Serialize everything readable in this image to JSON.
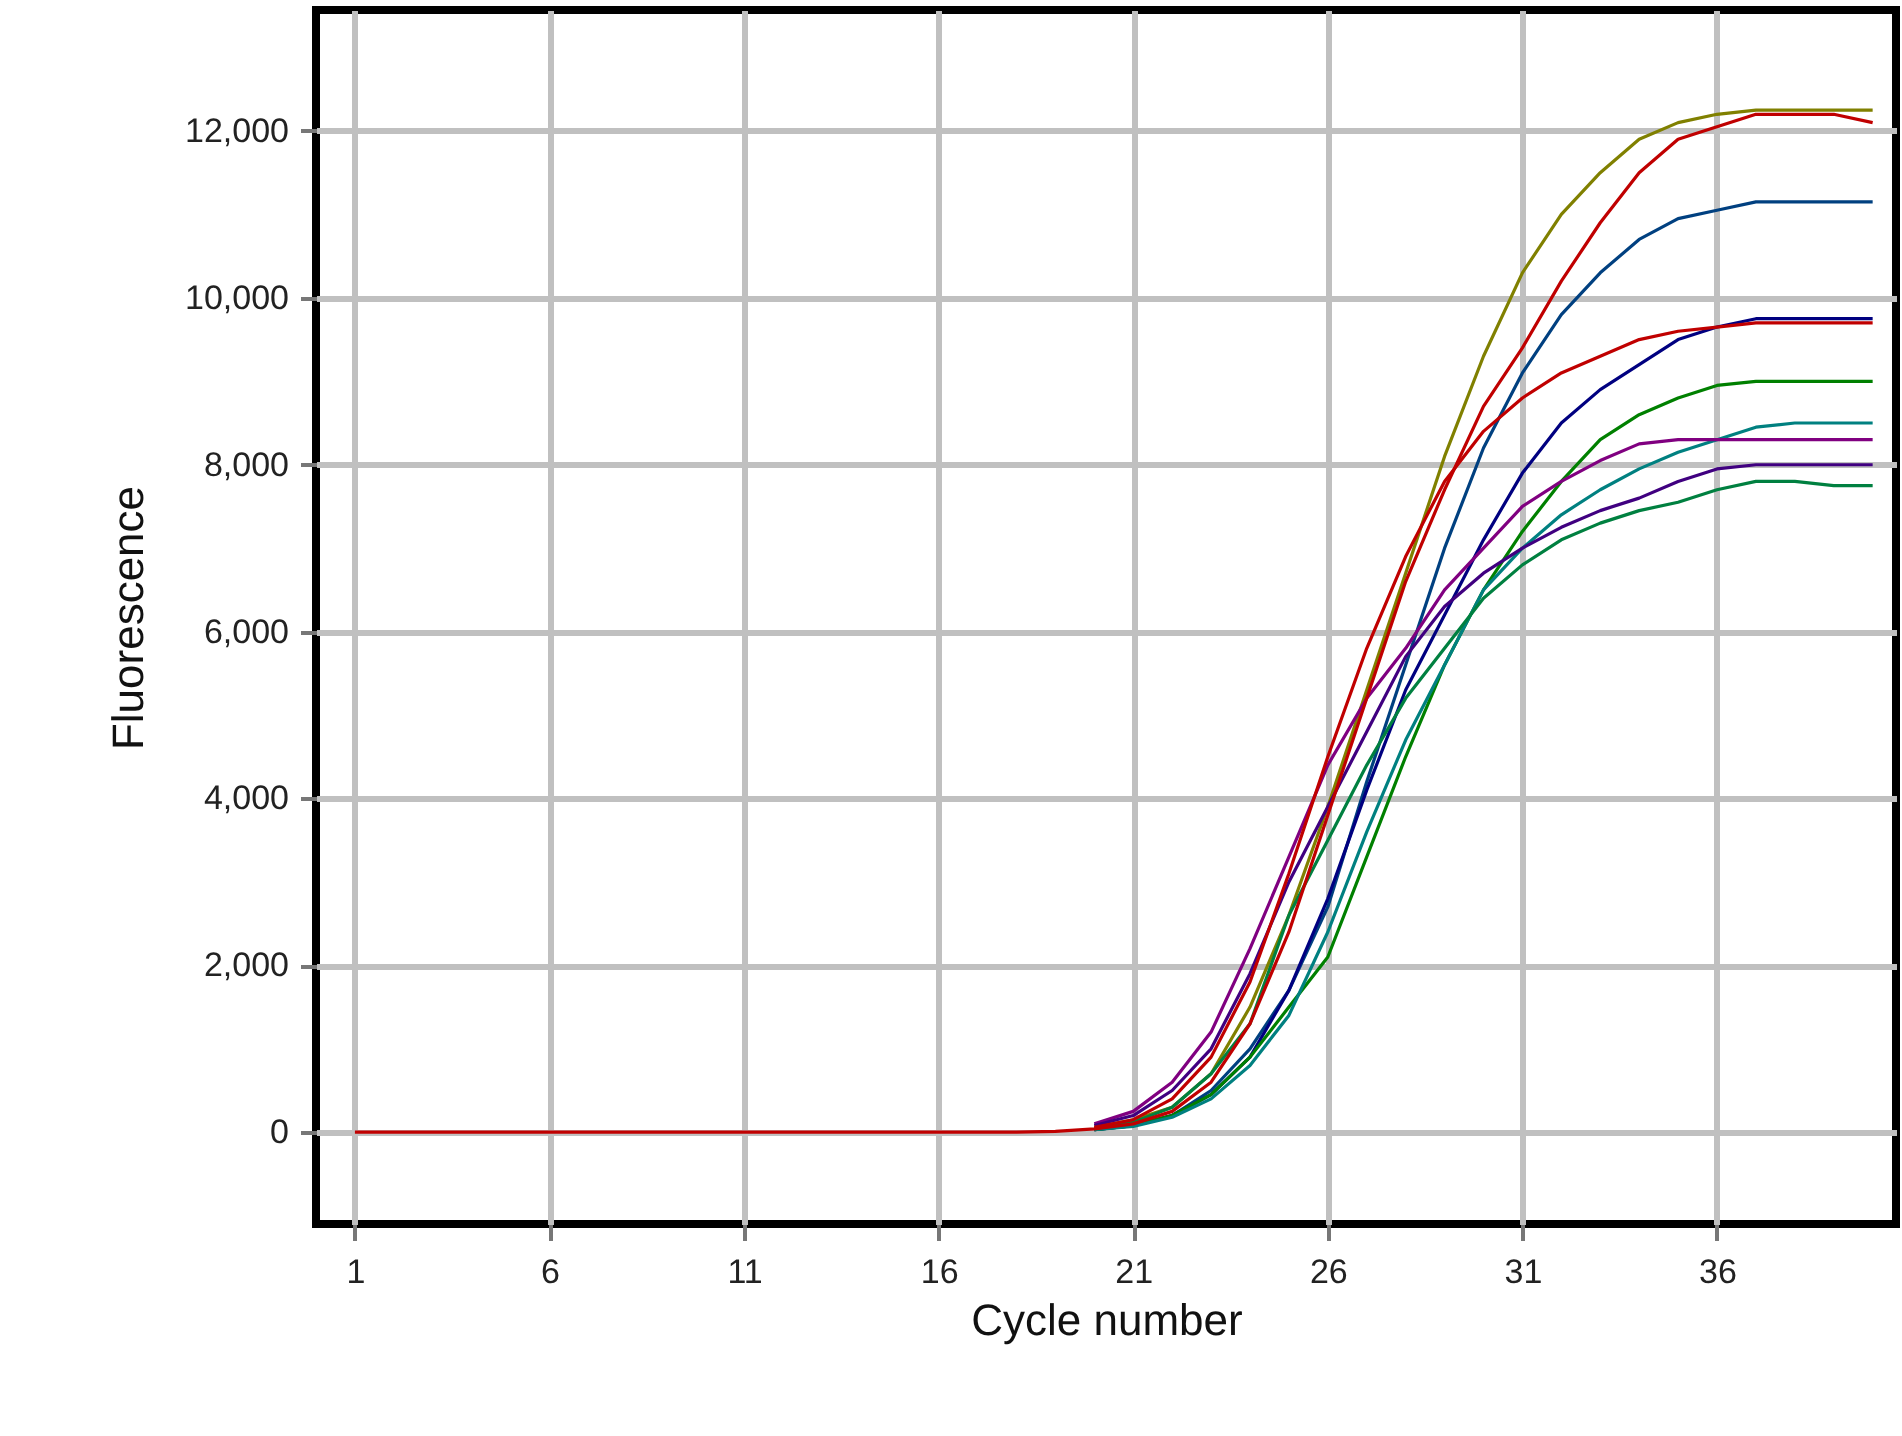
{
  "chart_data": {
    "type": "line",
    "xlabel": "Cycle number",
    "ylabel": "Fluorescence",
    "x": [
      1,
      2,
      3,
      4,
      5,
      6,
      7,
      8,
      9,
      10,
      11,
      12,
      13,
      14,
      15,
      16,
      17,
      18,
      19,
      20,
      21,
      22,
      23,
      24,
      25,
      26,
      27,
      28,
      29,
      30,
      31,
      32,
      33,
      34,
      35,
      36,
      37,
      38,
      39,
      40
    ],
    "xlim": [
      0,
      40.6
    ],
    "ylim": [
      -1100,
      13450
    ],
    "xticks": [
      1,
      6,
      11,
      16,
      21,
      26,
      31,
      36
    ],
    "yticks": [
      0,
      {
        "value": 2000,
        "label": "2,000"
      },
      {
        "value": 4000,
        "label": "4,000"
      },
      {
        "value": 6000,
        "label": "6,000"
      },
      {
        "value": 8000,
        "label": "8,000"
      },
      {
        "value": 10000,
        "label": "10,000"
      },
      {
        "value": 12000,
        "label": "12,000"
      }
    ],
    "grid": true,
    "marker": "none",
    "line_style": "solid",
    "series": [
      {
        "color": "#808000",
        "values": [
          null,
          null,
          null,
          null,
          null,
          null,
          null,
          null,
          null,
          null,
          null,
          null,
          null,
          null,
          null,
          null,
          null,
          null,
          null,
          60,
          150,
          300,
          700,
          1500,
          2600,
          3900,
          5300,
          6700,
          8100,
          9300,
          10300,
          11000,
          11500,
          11900,
          12100,
          12200,
          12250,
          12250,
          12250,
          12250
        ]
      },
      {
        "color": "#004080",
        "values": [
          null,
          null,
          null,
          null,
          null,
          null,
          null,
          null,
          null,
          null,
          null,
          null,
          null,
          null,
          null,
          null,
          null,
          null,
          null,
          30,
          80,
          200,
          500,
          1000,
          1700,
          2700,
          4200,
          5600,
          7000,
          8200,
          9100,
          9800,
          10300,
          10700,
          10950,
          11050,
          11150,
          11150,
          11150,
          11150
        ]
      },
      {
        "color": "#000080",
        "values": [
          null,
          null,
          null,
          null,
          null,
          null,
          null,
          null,
          null,
          null,
          null,
          null,
          null,
          null,
          null,
          null,
          null,
          null,
          null,
          30,
          80,
          200,
          450,
          900,
          1700,
          2800,
          4100,
          5300,
          6200,
          7100,
          7900,
          8500,
          8900,
          9200,
          9500,
          9650,
          9750,
          9750,
          9750,
          9750
        ]
      },
      {
        "color": "#008000",
        "values": [
          null,
          null,
          null,
          null,
          null,
          null,
          null,
          null,
          null,
          null,
          null,
          null,
          null,
          null,
          null,
          null,
          null,
          null,
          null,
          30,
          80,
          200,
          450,
          900,
          1500,
          2100,
          3300,
          4500,
          5600,
          6500,
          7200,
          7800,
          8300,
          8600,
          8800,
          8950,
          9000,
          9000,
          9000,
          9000
        ]
      },
      {
        "color": "#008080",
        "values": [
          null,
          null,
          null,
          null,
          null,
          null,
          null,
          null,
          null,
          null,
          null,
          null,
          null,
          null,
          null,
          null,
          null,
          null,
          null,
          30,
          70,
          180,
          400,
          800,
          1400,
          2400,
          3600,
          4700,
          5600,
          6500,
          7000,
          7400,
          7700,
          7950,
          8150,
          8300,
          8450,
          8500,
          8500,
          8500
        ]
      },
      {
        "color": "#800080",
        "values": [
          null,
          null,
          null,
          null,
          null,
          null,
          null,
          null,
          null,
          null,
          null,
          null,
          null,
          null,
          null,
          null,
          null,
          null,
          null,
          100,
          250,
          600,
          1200,
          2200,
          3300,
          4400,
          5200,
          5800,
          6500,
          7000,
          7500,
          7800,
          8050,
          8250,
          8300,
          8300,
          8300,
          8300,
          8300,
          8300
        ]
      },
      {
        "color": "#400080",
        "values": [
          null,
          null,
          null,
          null,
          null,
          null,
          null,
          null,
          null,
          null,
          null,
          null,
          null,
          null,
          null,
          null,
          null,
          null,
          null,
          80,
          200,
          500,
          1000,
          1900,
          3000,
          3900,
          4800,
          5700,
          6300,
          6700,
          7000,
          7250,
          7450,
          7600,
          7800,
          7950,
          8000,
          8000,
          8000,
          8000
        ]
      },
      {
        "color": "#008040",
        "values": [
          null,
          null,
          null,
          null,
          null,
          null,
          null,
          null,
          null,
          null,
          null,
          null,
          null,
          null,
          null,
          null,
          null,
          null,
          null,
          40,
          120,
          300,
          700,
          1300,
          2600,
          3500,
          4400,
          5200,
          5800,
          6400,
          6800,
          7100,
          7300,
          7450,
          7550,
          7700,
          7800,
          7800,
          7750,
          7750
        ]
      },
      {
        "color": "#c00000",
        "values": [
          null,
          null,
          null,
          null,
          null,
          null,
          null,
          null,
          null,
          null,
          null,
          null,
          null,
          null,
          null,
          null,
          null,
          null,
          null,
          60,
          150,
          400,
          900,
          1800,
          3100,
          4500,
          5800,
          6900,
          7800,
          8400,
          8800,
          9100,
          9300,
          9500,
          9600,
          9650,
          9700,
          9700,
          9700,
          9700
        ]
      },
      {
        "color": "#c00000",
        "values": [
          0,
          0,
          0,
          0,
          0,
          0,
          0,
          0,
          0,
          0,
          0,
          0,
          0,
          0,
          0,
          0,
          0,
          0,
          10,
          40,
          100,
          250,
          600,
          1300,
          2400,
          3800,
          5200,
          6600,
          7700,
          8700,
          9400,
          10200,
          10900,
          11500,
          11900,
          12050,
          12200,
          12200,
          12200,
          12100
        ]
      }
    ]
  }
}
